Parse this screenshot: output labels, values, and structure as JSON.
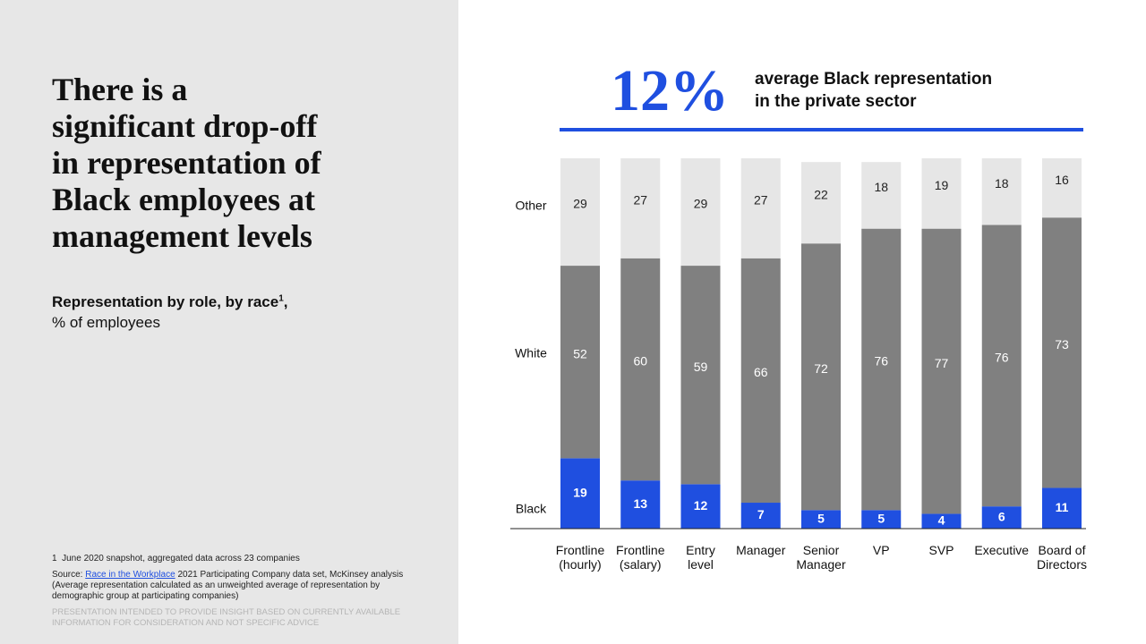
{
  "header": {
    "title": "There is a\nsignificant drop-off\nin representation of\nBlack employees at\nmanagement levels",
    "subtitle": "Representation by role, by race",
    "subtitle_sup": "1",
    "subtitle_end": ",",
    "subtitle_line2": "% of employees"
  },
  "footnotes": {
    "note_number": "1",
    "note": "June 2020 snapshot, aggregated data across 23 companies",
    "source_prefix": "Source:",
    "source_link": "Race in the Workplace",
    "source_rest": "2021 Participating Company data set, McKinsey analysis (Average representation calculated as an unweighted average of representation by demographic group at participating companies)",
    "disclaimer": "PRESENTATION INTENDED TO PROVIDE INSIGHT BASED ON CURRENTLY AVAILABLE INFORMATION FOR CONSIDERATION AND NOT SPECIFIC ADVICE"
  },
  "headline": {
    "figure": "12%",
    "text": "average Black representation\nin the private sector"
  },
  "chart_data": {
    "type": "stacked_bar",
    "categories": [
      "Frontline\n(hourly)",
      "Frontline\n(salary)",
      "Entry\nlevel",
      "Manager",
      "Senior\nManager",
      "VP",
      "SVP",
      "Executive",
      "Board of\nDirectors"
    ],
    "series": [
      {
        "name": "Black",
        "color": "#1f4fe0",
        "values": [
          19,
          13,
          12,
          7,
          5,
          5,
          4,
          6,
          11
        ]
      },
      {
        "name": "White",
        "color": "#808080",
        "values": [
          52,
          60,
          59,
          66,
          72,
          76,
          77,
          76,
          73
        ]
      },
      {
        "name": "Other",
        "color": "#e6e6e6",
        "values": [
          29,
          27,
          29,
          27,
          22,
          18,
          19,
          18,
          16
        ]
      }
    ],
    "ylim": [
      0,
      100
    ]
  }
}
